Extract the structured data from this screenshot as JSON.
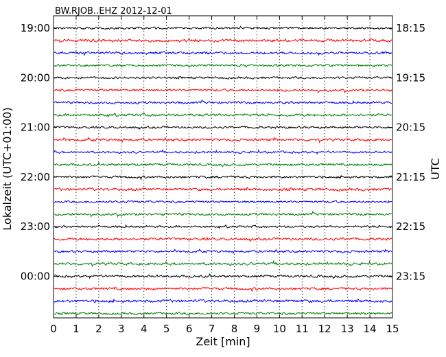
{
  "chart_data": {
    "type": "line",
    "title": "BW.RJOB..EHZ 2012-12-01",
    "xlabel": "Zeit  [min]",
    "ylabel_left": "Lokalzeit (UTC+01:00)",
    "ylabel_right": "UTC",
    "xlim": [
      0,
      15
    ],
    "x_ticks": [
      "0",
      "1",
      "2",
      "3",
      "4",
      "5",
      "6",
      "7",
      "8",
      "9",
      "10",
      "11",
      "12",
      "13",
      "14",
      "15"
    ],
    "grid": "vertical dotted at each minute",
    "legend": "none",
    "rows_per_hour": 4,
    "left_tick_labels": [
      "19:00",
      "20:00",
      "21:00",
      "22:00",
      "23:00",
      "00:00"
    ],
    "right_tick_labels": [
      "18:15",
      "19:15",
      "20:15",
      "21:15",
      "22:15",
      "23:15"
    ],
    "trace_colors": [
      "#000000",
      "#ff0000",
      "#0000ff",
      "#008000"
    ],
    "traces": [
      {
        "color": "#000000",
        "amplitude": 0.1
      },
      {
        "color": "#ff0000",
        "amplitude": 0.13
      },
      {
        "color": "#0000ff",
        "amplitude": 0.12
      },
      {
        "color": "#008000",
        "amplitude": 0.1
      },
      {
        "color": "#000000",
        "amplitude": 0.1
      },
      {
        "color": "#ff0000",
        "amplitude": 0.11
      },
      {
        "color": "#0000ff",
        "amplitude": 0.11
      },
      {
        "color": "#008000",
        "amplitude": 0.12
      },
      {
        "color": "#000000",
        "amplitude": 0.1
      },
      {
        "color": "#ff0000",
        "amplitude": 0.12
      },
      {
        "color": "#0000ff",
        "amplitude": 0.1
      },
      {
        "color": "#008000",
        "amplitude": 0.11
      },
      {
        "color": "#000000",
        "amplitude": 0.11
      },
      {
        "color": "#ff0000",
        "amplitude": 0.13
      },
      {
        "color": "#0000ff",
        "amplitude": 0.1
      },
      {
        "color": "#008000",
        "amplitude": 0.11
      },
      {
        "color": "#000000",
        "amplitude": 0.1
      },
      {
        "color": "#ff0000",
        "amplitude": 0.12
      },
      {
        "color": "#0000ff",
        "amplitude": 0.11
      },
      {
        "color": "#008000",
        "amplitude": 0.12
      },
      {
        "color": "#000000",
        "amplitude": 0.11
      },
      {
        "color": "#ff0000",
        "amplitude": 0.12
      },
      {
        "color": "#0000ff",
        "amplitude": 0.13
      },
      {
        "color": "#008000",
        "amplitude": 0.11
      }
    ]
  }
}
